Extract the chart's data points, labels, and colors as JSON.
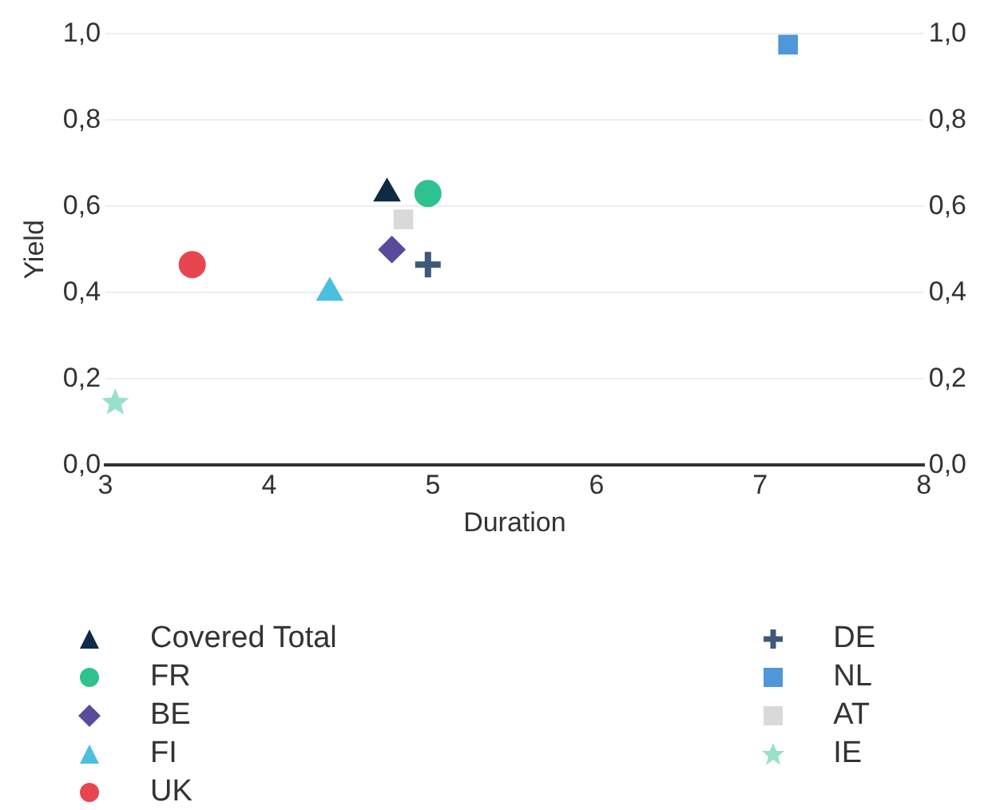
{
  "chart_data": {
    "type": "scatter",
    "xlabel": "Duration",
    "ylabel": "Yield",
    "xlim": [
      3,
      8
    ],
    "xticks": [
      3,
      4,
      5,
      6,
      7,
      8
    ],
    "ylim": [
      0,
      1
    ],
    "yticks": [
      {
        "value": 0,
        "label": "0,0"
      },
      {
        "value": 0.2,
        "label": "0,2"
      },
      {
        "value": 0.4,
        "label": "0,4"
      },
      {
        "value": 0.6,
        "label": "0,6"
      },
      {
        "value": 0.8,
        "label": "0,8"
      },
      {
        "value": 1,
        "label": "1,0"
      }
    ],
    "y2lim": [
      0,
      1
    ],
    "y2ticks": [
      {
        "value": 0,
        "label": "0,0"
      },
      {
        "value": 0.2,
        "label": "0,2"
      },
      {
        "value": 0.4,
        "label": "0,4"
      },
      {
        "value": 0.6,
        "label": "0,6"
      },
      {
        "value": 0.8,
        "label": "0,8"
      },
      {
        "value": 1,
        "label": "1,0"
      }
    ],
    "grid": "y",
    "legend": "bottom",
    "series": [
      {
        "name": "Covered Total",
        "color": "#0e2a47",
        "marker": "triangle",
        "x": [
          4.72
        ],
        "values": [
          0.63
        ]
      },
      {
        "name": "FR",
        "color": "#2ec28e",
        "marker": "circle",
        "x": [
          4.97
        ],
        "values": [
          0.63
        ]
      },
      {
        "name": "BE",
        "color": "#5a4a9c",
        "marker": "diamond",
        "x": [
          4.75
        ],
        "values": [
          0.5
        ]
      },
      {
        "name": "FI",
        "color": "#4bbfe0",
        "marker": "triangle",
        "x": [
          4.37
        ],
        "values": [
          0.4
        ]
      },
      {
        "name": "UK",
        "color": "#e8464f",
        "marker": "circle",
        "x": [
          3.53
        ],
        "values": [
          0.465
        ]
      },
      {
        "name": "DE",
        "color": "#3f5a78",
        "marker": "cross",
        "x": [
          4.97
        ],
        "values": [
          0.465
        ]
      },
      {
        "name": "NL",
        "color": "#4e97d9",
        "marker": "square",
        "x": [
          7.17
        ],
        "values": [
          0.975
        ]
      },
      {
        "name": "AT",
        "color": "#d9d9d9",
        "marker": "square",
        "x": [
          4.82
        ],
        "values": [
          0.57
        ]
      },
      {
        "name": "IE",
        "color": "#98e0c8",
        "marker": "star",
        "x": [
          3.06
        ],
        "values": [
          0.145
        ]
      }
    ]
  }
}
